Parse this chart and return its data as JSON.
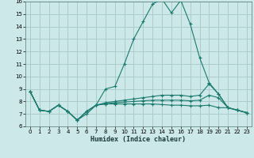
{
  "title": "",
  "xlabel": "Humidex (Indice chaleur)",
  "bg_color": "#cce8e8",
  "grid_color": "#aacccc",
  "line_color": "#1a7a6e",
  "xlim": [
    -0.5,
    23.5
  ],
  "ylim": [
    6,
    16
  ],
  "xticks": [
    0,
    1,
    2,
    3,
    4,
    5,
    6,
    7,
    8,
    9,
    10,
    11,
    12,
    13,
    14,
    15,
    16,
    17,
    18,
    19,
    20,
    21,
    22,
    23
  ],
  "yticks": [
    6,
    7,
    8,
    9,
    10,
    11,
    12,
    13,
    14,
    15,
    16
  ],
  "series": [
    [
      8.8,
      7.3,
      7.2,
      7.7,
      7.2,
      6.5,
      7.0,
      7.7,
      9.0,
      9.2,
      11.0,
      13.0,
      14.4,
      15.8,
      16.2,
      15.1,
      16.1,
      14.2,
      11.5,
      9.5,
      8.6,
      7.5,
      7.3,
      7.1
    ],
    [
      8.8,
      7.3,
      7.2,
      7.7,
      7.2,
      6.5,
      7.2,
      7.7,
      7.9,
      8.0,
      8.1,
      8.2,
      8.3,
      8.4,
      8.5,
      8.5,
      8.5,
      8.4,
      8.5,
      9.4,
      8.6,
      7.5,
      7.3,
      7.1
    ],
    [
      8.8,
      7.3,
      7.2,
      7.7,
      7.2,
      6.5,
      7.2,
      7.7,
      7.8,
      7.9,
      7.95,
      8.0,
      8.05,
      8.1,
      8.1,
      8.1,
      8.1,
      8.05,
      8.1,
      8.5,
      8.3,
      7.5,
      7.3,
      7.1
    ],
    [
      8.8,
      7.3,
      7.2,
      7.7,
      7.2,
      6.5,
      7.2,
      7.7,
      7.8,
      7.8,
      7.8,
      7.8,
      7.8,
      7.8,
      7.75,
      7.7,
      7.7,
      7.65,
      7.65,
      7.7,
      7.5,
      7.5,
      7.3,
      7.1
    ]
  ]
}
